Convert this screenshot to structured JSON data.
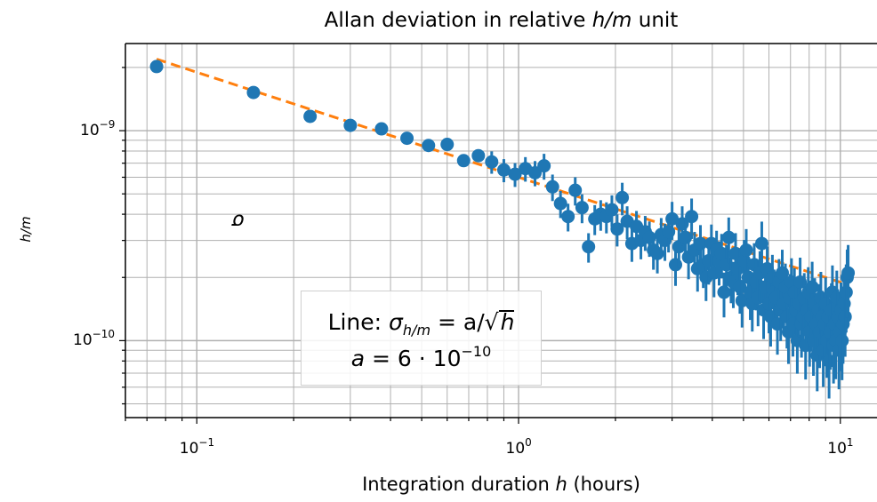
{
  "chart_data": {
    "type": "scatter",
    "title": "Allan deviation in relative h/m unit",
    "title_parts": {
      "prefix": "Allan deviation in relative ",
      "var": "h/m",
      "suffix": " unit"
    },
    "xlabel": "Integration duration h (hours)",
    "xlabel_parts": {
      "prefix": "Integration duration ",
      "var": "h",
      "suffix": " (hours)"
    },
    "ylabel": "σ_h/m",
    "ylabel_parts": {
      "sym": "σ",
      "sub": "h/m"
    },
    "xscale": "log",
    "yscale": "log",
    "xlim": [
      0.06,
      13.0
    ],
    "ylim": [
      4.3e-11,
      2.6e-09
    ],
    "grid": "both (major and minor)",
    "x_ticks": [
      {
        "value": 0.1,
        "base": "10",
        "exp": "−1"
      },
      {
        "value": 1,
        "base": "10",
        "exp": "0"
      },
      {
        "value": 10,
        "base": "10",
        "exp": "1"
      }
    ],
    "y_ticks": [
      {
        "value": 1e-10,
        "base": "10",
        "exp": "−10"
      },
      {
        "value": 1e-09,
        "base": "10",
        "exp": "−9"
      }
    ],
    "colors": {
      "points": "#1f77b4",
      "fit": "#ff7f0e",
      "grid": "#b0b0b0"
    },
    "fit_line": {
      "a": 6e-10,
      "x_range": [
        0.075,
        10.6
      ]
    },
    "annotation": {
      "line1_prefix": "Line: ",
      "line1_formula": "σh/m = a/√h",
      "line1_sym": "σ",
      "line1_sub": "h/m",
      "line1_eq": " = a/",
      "line1_sqrt": "√",
      "line1_rad": "h",
      "line2_a": "a",
      "line2_eq": " = 6 · 10",
      "line2_exp": "−10"
    },
    "series": [
      {
        "x": [
          0.075,
          0.15,
          0.225,
          0.3,
          0.375,
          0.45,
          0.525,
          0.6,
          0.675,
          0.75,
          0.825,
          0.9,
          0.975,
          1.05,
          1.125,
          1.2,
          1.275,
          1.35,
          1.425,
          1.5,
          1.575,
          1.65,
          1.725,
          1.8,
          1.875,
          1.95,
          2.025,
          2.1,
          2.175,
          2.25,
          2.325,
          2.4,
          2.475,
          2.55,
          2.625,
          2.7,
          2.775,
          2.85,
          2.925,
          3.0,
          3.075,
          3.15,
          3.225,
          3.3,
          3.375,
          3.45,
          3.525,
          3.6,
          3.675,
          3.75,
          3.825,
          3.9,
          3.975,
          4.05,
          4.125,
          4.2,
          4.275,
          4.35,
          4.425,
          4.5,
          4.575,
          4.65,
          4.725,
          4.8,
          4.875,
          4.95,
          5.025,
          5.1,
          5.175,
          5.25,
          5.325,
          5.4,
          5.475,
          5.55,
          5.625,
          5.7,
          5.775,
          5.85,
          5.925,
          6.0,
          6.075,
          6.15,
          6.225,
          6.3,
          6.375,
          6.45,
          6.525,
          6.6,
          6.675,
          6.75,
          6.825,
          6.9,
          6.975,
          7.05,
          7.125,
          7.2,
          7.275,
          7.35,
          7.425,
          7.5,
          7.575,
          7.65,
          7.725,
          7.8,
          7.875,
          7.95,
          8.025,
          8.1,
          8.175,
          8.25,
          8.325,
          8.4,
          8.475,
          8.55,
          8.625,
          8.7,
          8.775,
          8.85,
          8.925,
          9.0,
          9.075,
          9.15,
          9.225,
          9.3,
          9.375,
          9.45,
          9.525,
          9.6,
          9.675,
          9.75,
          9.825,
          9.9,
          9.975,
          10.05,
          10.125,
          10.2,
          10.275,
          10.35,
          10.425,
          10.5,
          10.575
        ],
        "y": [
          2.02e-09,
          1.52e-09,
          1.17e-09,
          1.06e-09,
          1.02e-09,
          9.2e-10,
          8.5e-10,
          8.6e-10,
          7.2e-10,
          7.6e-10,
          7.1e-10,
          6.5e-10,
          6.2e-10,
          6.6e-10,
          6.3e-10,
          6.8e-10,
          5.4e-10,
          4.5e-10,
          3.9e-10,
          5.2e-10,
          4.3e-10,
          2.8e-10,
          3.8e-10,
          4e-10,
          3.9e-10,
          4.2e-10,
          3.4e-10,
          4.8e-10,
          3.7e-10,
          2.9e-10,
          3.5e-10,
          3e-10,
          3.3e-10,
          3.1e-10,
          2.7e-10,
          2.6e-10,
          3.2e-10,
          3e-10,
          3.3e-10,
          3.8e-10,
          2.3e-10,
          2.8e-10,
          3.6e-10,
          3.1e-10,
          2.5e-10,
          3.9e-10,
          2.7e-10,
          2.2e-10,
          2.9e-10,
          2.3e-10,
          2e-10,
          2.4e-10,
          2.9e-10,
          2.1e-10,
          2.7e-10,
          2.4e-10,
          2.6e-10,
          1.7e-10,
          2.3e-10,
          3.1e-10,
          2e-10,
          1.9e-10,
          2.6e-10,
          2.2e-10,
          1.8e-10,
          1.55e-10,
          2.4e-10,
          2.7e-10,
          2e-10,
          1.7e-10,
          1.5e-10,
          2.3e-10,
          1.9e-10,
          1.6e-10,
          2.1e-10,
          2.9e-10,
          1.4e-10,
          1.8e-10,
          2.2e-10,
          1.5e-10,
          1.3e-10,
          2e-10,
          1.7e-10,
          1.6e-10,
          1.2e-10,
          1.9e-10,
          1.4e-10,
          2.1e-10,
          1.5e-10,
          1.8e-10,
          1.3e-10,
          1.1e-10,
          1.6e-10,
          1.9e-10,
          1.2e-10,
          1.7e-10,
          1.4e-10,
          1e-10,
          1.5e-10,
          1.9e-10,
          1.2e-10,
          1.3e-10,
          1.6e-10,
          9.5e-11,
          1.4e-10,
          1.7e-10,
          1.1e-10,
          1.3e-10,
          1.8e-10,
          1e-10,
          1.5e-10,
          1.2e-10,
          8.5e-11,
          1.4e-10,
          1.1e-10,
          1.6e-10,
          1.3e-10,
          9e-11,
          1.2e-10,
          1.5e-10,
          1e-10,
          1.3e-10,
          8e-11,
          1.1e-10,
          1.4e-10,
          1.7e-10,
          9.5e-11,
          1.2e-10,
          1e-10,
          1.6e-10,
          1.3e-10,
          9e-11,
          1.1e-10,
          1.4e-10,
          1e-10,
          1.2e-10,
          1.5e-10,
          1.3e-10,
          1.7e-10,
          2e-10,
          2.1e-10
        ]
      }
    ]
  }
}
